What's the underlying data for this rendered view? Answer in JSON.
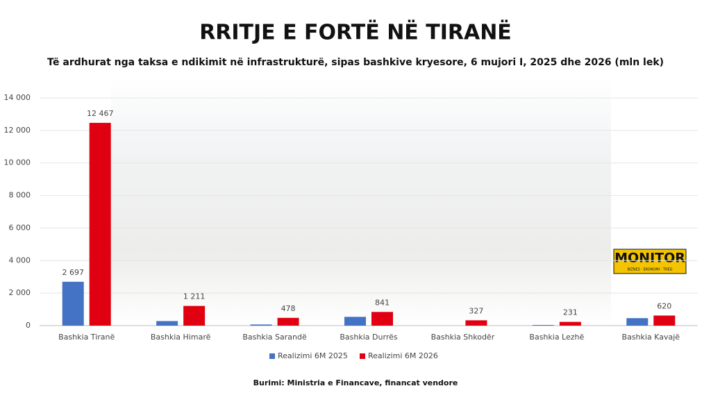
{
  "chart_data": {
    "type": "bar",
    "title": "RRITJE E FORTË NË TIRANË",
    "subtitle": "Të ardhurat nga taksa e ndikimit në infrastrukturë, sipas bashkive kryesore, 6 mujori I, 2025 dhe 2026 (mln lek)",
    "source": "Burimi: Ministria e Financave, financat vendore",
    "logo": "MONITOR",
    "logo_tagline": "BIZNES · EKONOMI · TREG",
    "categories": [
      "Bashkia Tiranë",
      "Bashkia Himarë",
      "Bashkia Sarandë",
      "Bashkia Durrës",
      "Bashkia Shkodër",
      "Bashkia Lezhë",
      "Bashkia Kavajë"
    ],
    "series": [
      {
        "name": "Realizimi 6M 2025",
        "color": "#4472c4",
        "values": [
          2697,
          280,
          70,
          540,
          0,
          40,
          460
        ],
        "value_labels": [
          "2 697",
          null,
          null,
          null,
          null,
          null,
          null
        ]
      },
      {
        "name": "Realizimi 6M 2026",
        "color": "#e00012",
        "values": [
          12467,
          1211,
          478,
          841,
          327,
          231,
          620
        ],
        "value_labels": [
          "12 467",
          "1 211",
          "478",
          "841",
          "327",
          "231",
          "620"
        ]
      }
    ],
    "ylim": [
      0,
      14000
    ],
    "yticks": [
      0,
      {
        "value": 2000,
        "label": "2 000"
      },
      {
        "value": 4000,
        "label": "4 000"
      },
      {
        "value": 6000,
        "label": "6 000"
      },
      {
        "value": 8000,
        "label": "8 000"
      },
      {
        "value": 10000,
        "label": "10 000"
      },
      {
        "value": 12000,
        "label": "12 000"
      },
      {
        "value": 14000,
        "label": "14 000"
      }
    ],
    "grid": true,
    "legend": "bottom"
  }
}
